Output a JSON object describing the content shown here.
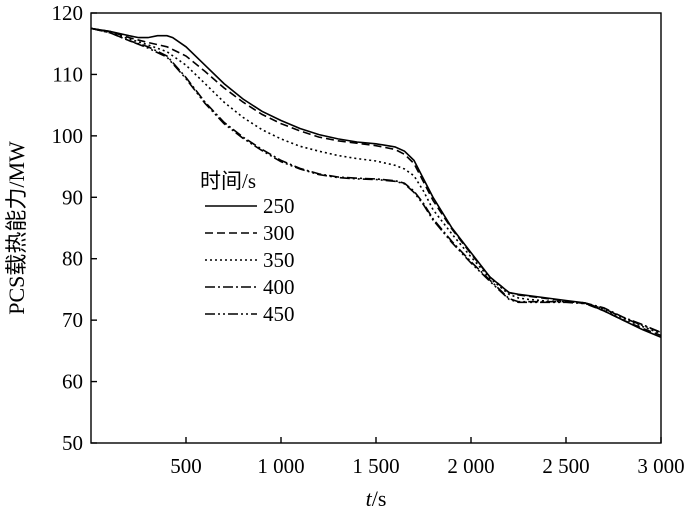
{
  "chart_data": {
    "type": "line",
    "title": "",
    "xlabel_italic": "t",
    "xlabel_rest": "/s",
    "ylabel": "PCS载热能力/MW",
    "xlim": [
      0,
      3000
    ],
    "ylim": [
      50,
      120
    ],
    "xticks": [
      500,
      1000,
      1500,
      2000,
      2500,
      3000
    ],
    "xtick_labels": [
      "500",
      "1 000",
      "1 500",
      "2 000",
      "2 500",
      "3 000"
    ],
    "yticks": [
      50,
      60,
      70,
      80,
      90,
      100,
      110,
      120
    ],
    "ytick_labels": [
      "50",
      "60",
      "70",
      "80",
      "90",
      "100",
      "110",
      "120"
    ],
    "grid": false,
    "legend_title": "时间/s",
    "legend_position": "middle-left",
    "series": [
      {
        "name": "250",
        "dash": "",
        "x": [
          0,
          100,
          200,
          250,
          300,
          350,
          400,
          430,
          500,
          600,
          700,
          800,
          900,
          1000,
          1100,
          1200,
          1300,
          1400,
          1500,
          1600,
          1650,
          1700,
          1750,
          1800,
          1900,
          2000,
          2100,
          2200,
          2250,
          2300,
          2400,
          2500,
          2600,
          2700,
          2800,
          2900,
          3000
        ],
        "y": [
          117.5,
          117,
          116.3,
          116,
          116,
          116.3,
          116.3,
          116,
          114.5,
          111.5,
          108.5,
          106,
          104,
          102.5,
          101.2,
          100.2,
          99.5,
          99,
          98.7,
          98.2,
          97.5,
          96,
          93,
          90,
          85,
          81,
          77,
          74.5,
          74.2,
          74,
          73.6,
          73.2,
          72.8,
          71.5,
          70,
          68.5,
          67.2
        ]
      },
      {
        "name": "300",
        "dash": "8,4",
        "x": [
          0,
          100,
          200,
          300,
          400,
          500,
          600,
          700,
          800,
          900,
          1000,
          1100,
          1200,
          1300,
          1400,
          1500,
          1600,
          1650,
          1700,
          1750,
          1800,
          1900,
          2000,
          2100,
          2200,
          2250,
          2300,
          2400,
          2500,
          2600,
          2700,
          2800,
          2900,
          3000
        ],
        "y": [
          117.5,
          117,
          116,
          115.2,
          114.5,
          113,
          110.5,
          107.8,
          105.5,
          103.5,
          102,
          100.8,
          99.8,
          99.2,
          98.8,
          98.4,
          97.8,
          97,
          95.5,
          92.5,
          89.5,
          84.8,
          80.8,
          77,
          74.5,
          74.1,
          73.9,
          73.5,
          73.1,
          72.7,
          71.5,
          70,
          68.7,
          67.5
        ]
      },
      {
        "name": "350",
        "dash": "2,3",
        "x": [
          0,
          100,
          200,
          300,
          400,
          500,
          600,
          700,
          800,
          900,
          1000,
          1100,
          1200,
          1300,
          1400,
          1500,
          1600,
          1650,
          1700,
          1750,
          1800,
          1900,
          2000,
          2100,
          2200,
          2250,
          2300,
          2400,
          2500,
          2600,
          2700,
          2800,
          2900,
          3000
        ],
        "y": [
          117.5,
          116.8,
          115.8,
          114.8,
          113.7,
          111.5,
          108.5,
          105.5,
          103,
          101,
          99.5,
          98.3,
          97.5,
          96.8,
          96.3,
          95.9,
          95.2,
          94.6,
          93.5,
          91,
          88,
          84,
          80.3,
          76.8,
          74.2,
          73.6,
          73.4,
          73.1,
          73,
          72.8,
          71.8,
          70.3,
          69,
          67.8
        ]
      },
      {
        "name": "400",
        "dash": "10,3,2,3",
        "x": [
          0,
          100,
          200,
          300,
          400,
          500,
          600,
          700,
          800,
          900,
          1000,
          1100,
          1200,
          1300,
          1400,
          1500,
          1600,
          1650,
          1700,
          1750,
          1800,
          1900,
          2000,
          2100,
          2200,
          2250,
          2300,
          2400,
          2500,
          2600,
          2700,
          2800,
          2900,
          3000
        ],
        "y": [
          117.5,
          116.8,
          115.5,
          114.5,
          113,
          109.5,
          105.5,
          102.2,
          99.8,
          97.8,
          96,
          94.7,
          93.8,
          93.3,
          93.1,
          93,
          92.7,
          92.3,
          91,
          89,
          86.5,
          82.8,
          79.5,
          76.5,
          73.5,
          73,
          73,
          73,
          73,
          72.8,
          72,
          70.5,
          69.3,
          68
        ]
      },
      {
        "name": "450",
        "dash": "10,3,2,3,2,3",
        "x": [
          0,
          100,
          200,
          300,
          400,
          500,
          600,
          700,
          800,
          900,
          1000,
          1100,
          1200,
          1300,
          1400,
          1500,
          1600,
          1650,
          1700,
          1750,
          1800,
          1900,
          2000,
          2100,
          2200,
          2250,
          2300,
          2400,
          2500,
          2600,
          2700,
          2800,
          2900,
          3000
        ],
        "y": [
          117.5,
          116.8,
          115.5,
          114.3,
          112.8,
          109.3,
          105.3,
          102,
          99.6,
          97.6,
          95.8,
          94.6,
          93.7,
          93.2,
          93,
          92.9,
          92.6,
          92.2,
          90.8,
          88.8,
          86.3,
          82.6,
          79.3,
          76.3,
          73.4,
          72.9,
          72.9,
          72.9,
          72.9,
          72.7,
          71.9,
          70.4,
          69.2,
          68
        ]
      }
    ]
  }
}
